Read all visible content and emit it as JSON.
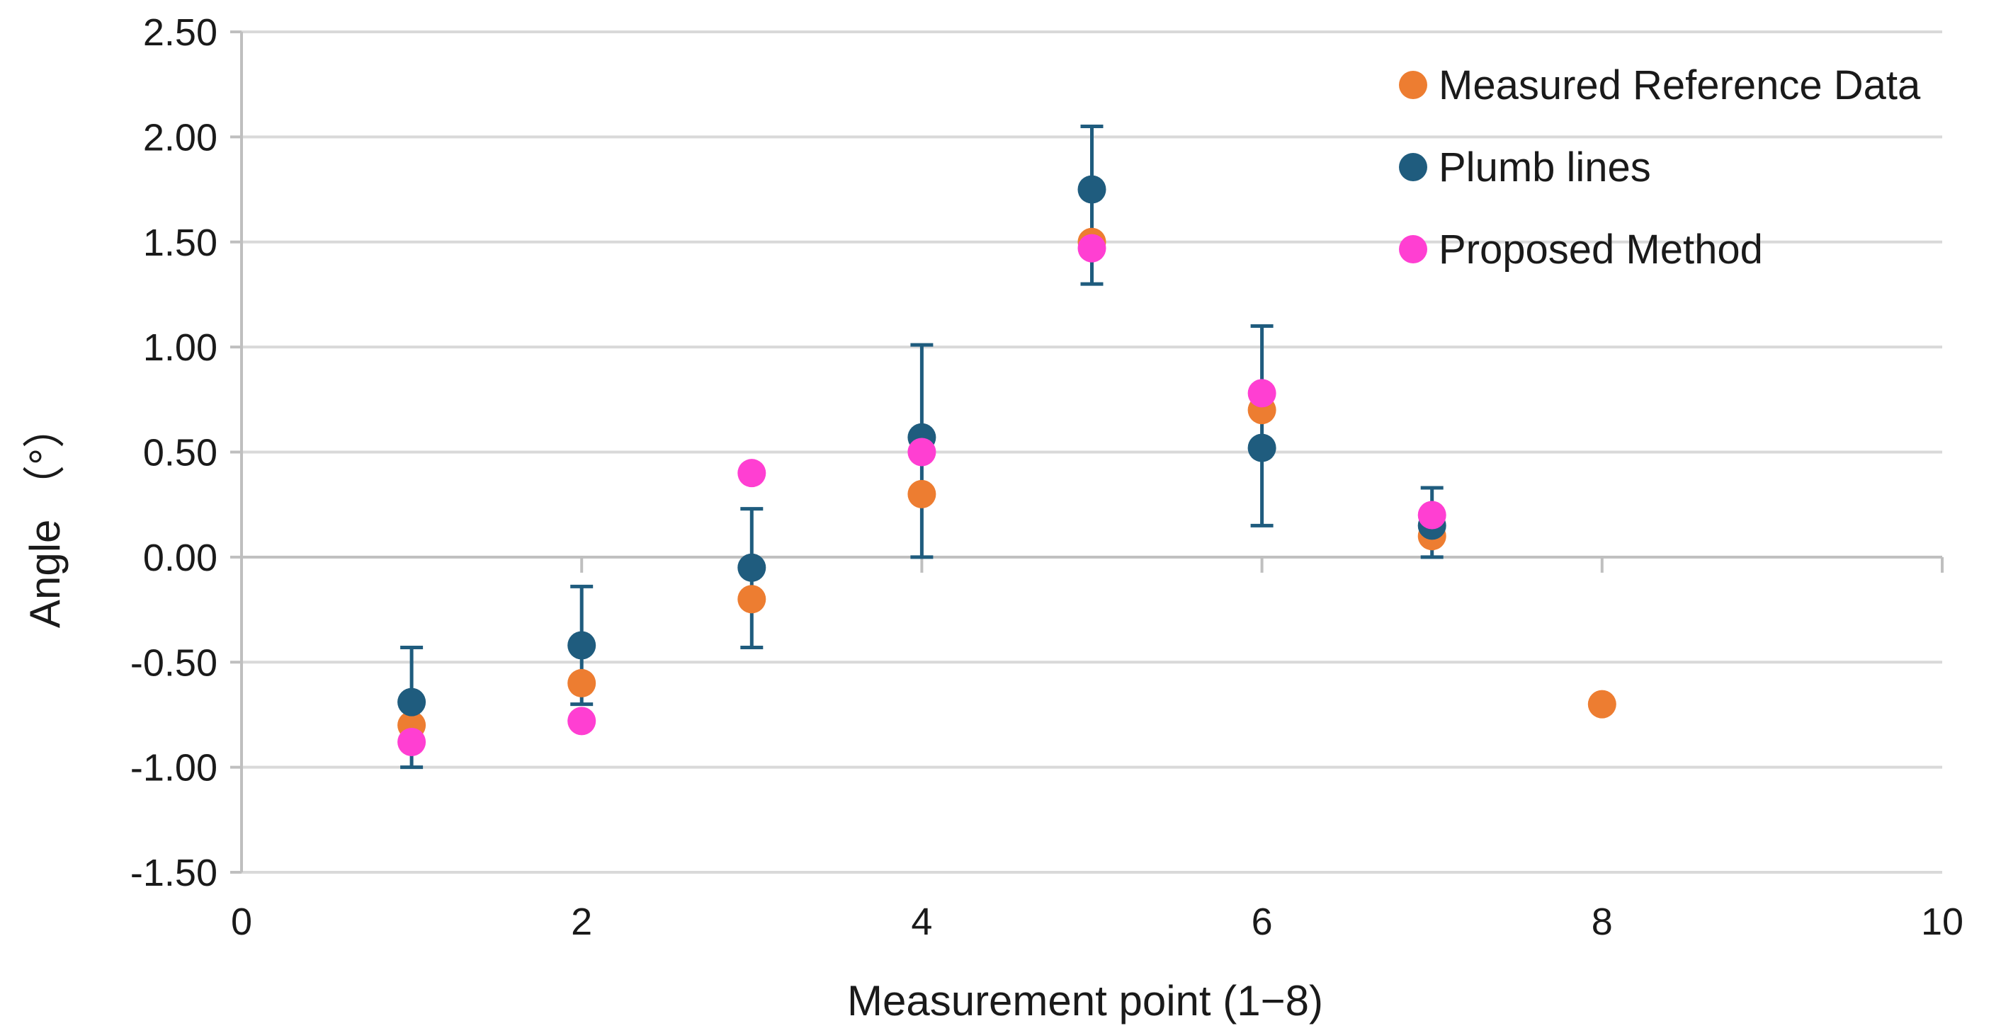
{
  "chart_data": {
    "type": "scatter",
    "title": "",
    "xlabel": "Measurement point (1−8)",
    "ylabel": "Angle （°）",
    "xlim": [
      0,
      10
    ],
    "ylim": [
      -1.5,
      2.5
    ],
    "x_ticks": [
      0,
      2,
      4,
      6,
      8,
      10
    ],
    "x_tick_labels": [
      "0",
      "2",
      "4",
      "6",
      "8",
      "10"
    ],
    "y_ticks": [
      2.5,
      2.0,
      1.5,
      1.0,
      0.5,
      0.0,
      -0.5,
      -1.0,
      -1.5
    ],
    "y_tick_labels": [
      "2.50",
      "2.00",
      "1.50",
      "1.00",
      "0.50",
      "0.00",
      "-0.50",
      "-1.00",
      "-1.50"
    ],
    "grid": "horizontal",
    "legend_position": "top-right",
    "series": [
      {
        "name": "Measured Reference Data",
        "color": "#ED7D31",
        "x": [
          1,
          2,
          3,
          4,
          5,
          6,
          7,
          8
        ],
        "y": [
          -0.8,
          -0.6,
          -0.2,
          0.3,
          1.5,
          0.7,
          0.1,
          -0.7
        ]
      },
      {
        "name": "Plumb lines",
        "color": "#1F5C7E",
        "x": [
          1,
          2,
          3,
          4,
          5,
          6,
          7
        ],
        "y": [
          -0.69,
          -0.42,
          -0.05,
          0.57,
          1.75,
          0.52,
          0.15
        ],
        "error_low": [
          -1.0,
          -0.7,
          -0.43,
          0.0,
          1.3,
          0.15,
          0.0
        ],
        "error_high": [
          -0.43,
          -0.14,
          0.23,
          1.01,
          2.05,
          1.1,
          0.33
        ]
      },
      {
        "name": "Proposed Method",
        "color": "#FF3FD2",
        "x": [
          1,
          2,
          3,
          4,
          5,
          6,
          7
        ],
        "y": [
          -0.88,
          -0.78,
          0.4,
          0.5,
          1.47,
          0.78,
          0.2
        ]
      }
    ]
  }
}
